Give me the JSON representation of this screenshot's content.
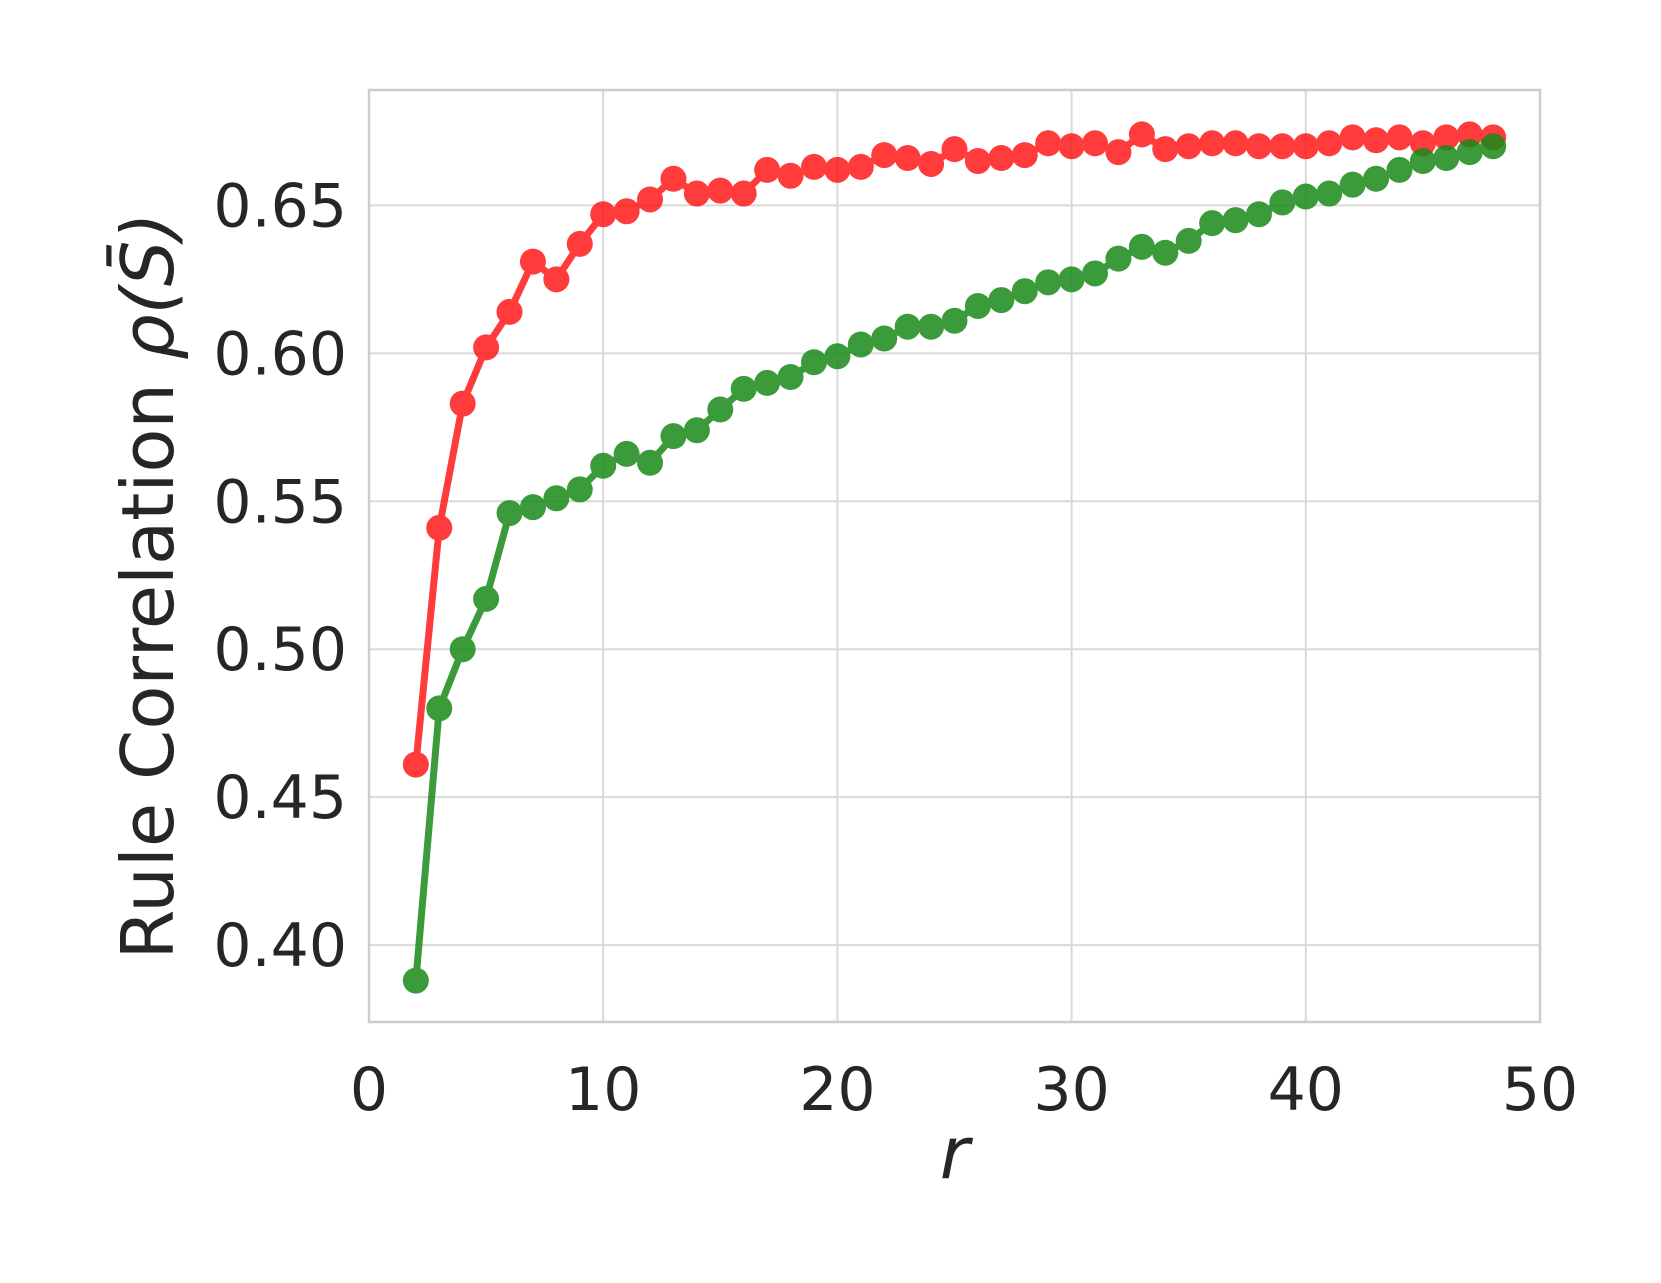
{
  "chart_data": {
    "type": "line",
    "xlabel": "r",
    "ylabel_text": "Rule Correlation ",
    "ylabel_math": "ρ(S̄)",
    "xlim": [
      0,
      50
    ],
    "ylim": [
      0.374,
      0.689
    ],
    "x_ticks": [
      0,
      10,
      20,
      30,
      40,
      50
    ],
    "x_tick_labels": [
      "0",
      "10",
      "20",
      "30",
      "40",
      "50"
    ],
    "y_ticks": [
      0.4,
      0.45,
      0.5,
      0.55,
      0.6,
      0.65
    ],
    "y_tick_labels": [
      "0.40",
      "0.45",
      "0.50",
      "0.55",
      "0.60",
      "0.65"
    ],
    "grid": true,
    "x": [
      2,
      3,
      4,
      5,
      6,
      7,
      8,
      9,
      10,
      11,
      12,
      13,
      14,
      15,
      16,
      17,
      18,
      19,
      20,
      21,
      22,
      23,
      24,
      25,
      26,
      27,
      28,
      29,
      30,
      31,
      32,
      33,
      34,
      35,
      36,
      37,
      38,
      39,
      40,
      41,
      42,
      43,
      44,
      45,
      46,
      47,
      48
    ],
    "series": [
      {
        "color": "#ff1a1a",
        "values": [
          0.461,
          0.541,
          0.583,
          0.602,
          0.614,
          0.631,
          0.625,
          0.637,
          0.647,
          0.648,
          0.652,
          0.659,
          0.654,
          0.655,
          0.654,
          0.662,
          0.66,
          0.663,
          0.662,
          0.663,
          0.667,
          0.666,
          0.664,
          0.669,
          0.665,
          0.666,
          0.667,
          0.671,
          0.67,
          0.671,
          0.668,
          0.674,
          0.669,
          0.67,
          0.671,
          0.671,
          0.67,
          0.67,
          0.67,
          0.671,
          0.673,
          0.672,
          0.673,
          0.671,
          0.673,
          0.674,
          0.673
        ]
      },
      {
        "color": "#1a8a1a",
        "values": [
          0.388,
          0.48,
          0.5,
          0.517,
          0.546,
          0.548,
          0.551,
          0.554,
          0.562,
          0.566,
          0.563,
          0.572,
          0.574,
          0.581,
          0.588,
          0.59,
          0.592,
          0.597,
          0.599,
          0.603,
          0.605,
          0.609,
          0.609,
          0.611,
          0.616,
          0.618,
          0.621,
          0.624,
          0.625,
          0.627,
          0.632,
          0.636,
          0.634,
          0.638,
          0.644,
          0.645,
          0.647,
          0.651,
          0.653,
          0.654,
          0.657,
          0.659,
          0.662,
          0.665,
          0.666,
          0.668,
          0.67
        ]
      }
    ]
  }
}
